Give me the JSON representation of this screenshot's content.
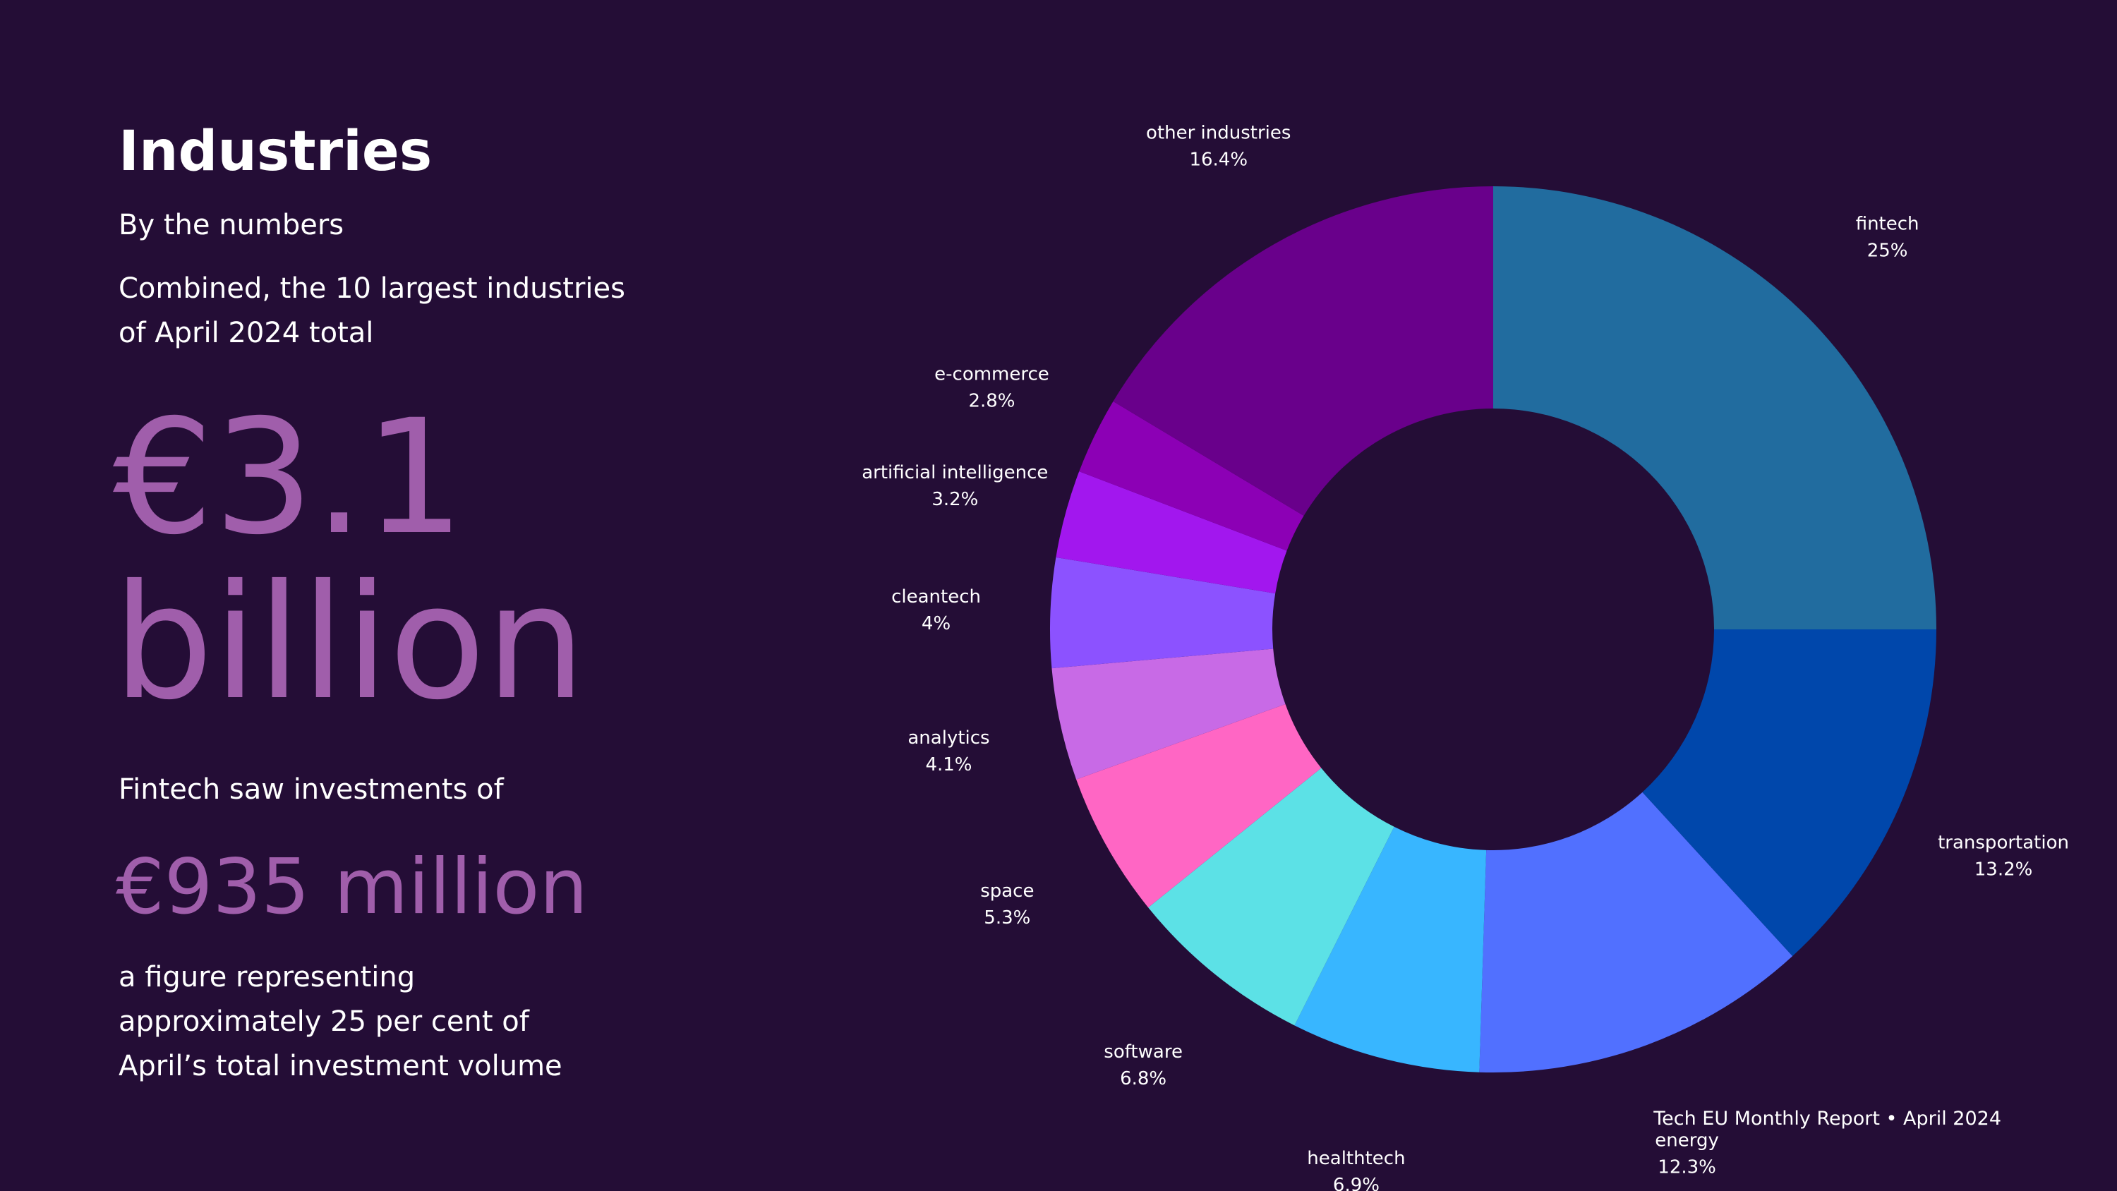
{
  "page": {
    "title": "Industries",
    "subtitle": "By the numbers",
    "combined_text": "Combined, the 10 largest industries of April 2024 total",
    "total_value": "€3.1 billion",
    "fintech_lead": "Fintech saw investments of",
    "fintech_amount": "€935 million",
    "figure_note": "a figure representing approximately 25 per cent of April’s total investment volume",
    "footer": "Tech EU Monthly Report • April 2024"
  },
  "colors": {
    "background": "#240d36",
    "accent_text": "#a05eab"
  },
  "chart_data": {
    "type": "pie",
    "donut": true,
    "legend": "none",
    "slices": [
      {
        "label": "fintech",
        "value": 25,
        "value_label": "25%",
        "color": "#216c9f"
      },
      {
        "label": "transportation",
        "value": 13.2,
        "value_label": "13.2%",
        "color": "#0047ab"
      },
      {
        "label": "energy",
        "value": 12.3,
        "value_label": "12.3%",
        "color": "#5170ff"
      },
      {
        "label": "healthtech",
        "value": 6.9,
        "value_label": "6.9%",
        "color": "#38b6ff"
      },
      {
        "label": "software",
        "value": 6.8,
        "value_label": "6.8%",
        "color": "#5ce1e6"
      },
      {
        "label": "space",
        "value": 5.3,
        "value_label": "5.3%",
        "color": "#ff66c4"
      },
      {
        "label": "analytics",
        "value": 4.1,
        "value_label": "4.1%",
        "color": "#c86ae6"
      },
      {
        "label": "cleantech",
        "value": 4,
        "value_label": "4%",
        "color": "#8c52ff"
      },
      {
        "label": "artificial intelligence",
        "value": 3.2,
        "value_label": "3.2%",
        "color": "#a217ee"
      },
      {
        "label": "e-commerce",
        "value": 2.8,
        "value_label": "2.8%",
        "color": "#8c00b5"
      },
      {
        "label": "other industries",
        "value": 16.4,
        "value_label": "16.4%",
        "color": "#69008b"
      }
    ]
  }
}
